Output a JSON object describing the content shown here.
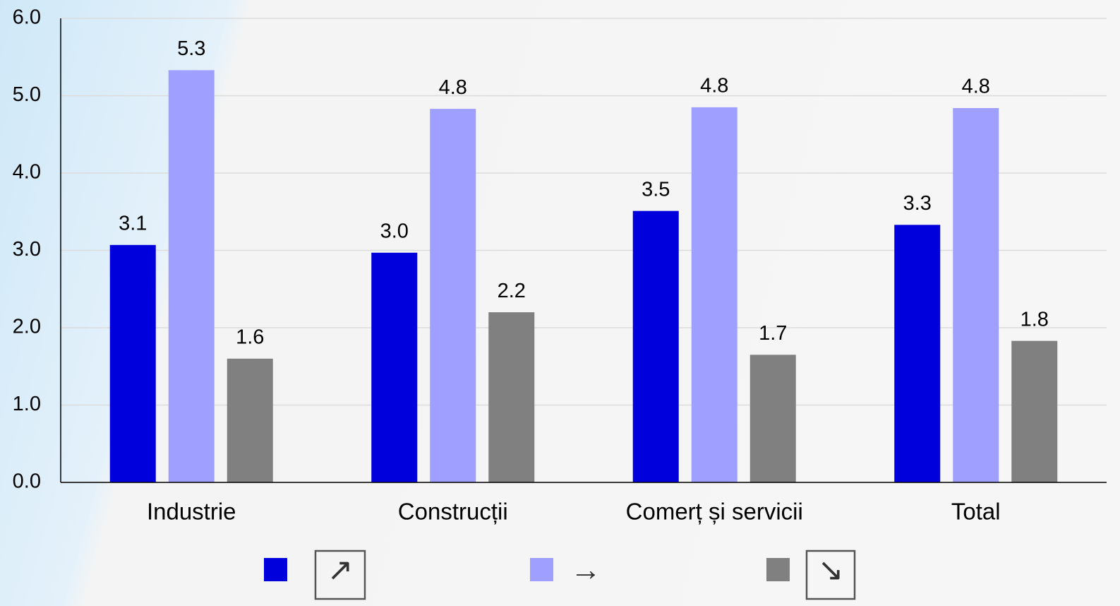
{
  "chart_data": {
    "type": "bar",
    "categories": [
      "Industrie",
      "Construcții",
      "Comerț și servicii",
      "Total"
    ],
    "series": [
      {
        "name": "↗",
        "color": "#0000dd",
        "values": [
          3.07,
          2.97,
          3.51,
          3.33
        ],
        "value_labels": [
          "3.1",
          "3.0",
          "3.5",
          "3.3"
        ]
      },
      {
        "name": "→",
        "color": "#9f9fff",
        "values": [
          5.33,
          4.83,
          4.85,
          4.84
        ],
        "value_labels": [
          "5.3",
          "4.8",
          "4.8",
          "4.8"
        ]
      },
      {
        "name": "↘",
        "color": "#808080",
        "values": [
          1.6,
          2.2,
          1.65,
          1.83
        ],
        "value_labels": [
          "1.6",
          "2.2",
          "1.7",
          "1.8"
        ]
      }
    ],
    "ylim": [
      0,
      6
    ],
    "yticks": [
      {
        "value": 0,
        "label": "0.0"
      },
      {
        "value": 1,
        "label": "1.0"
      },
      {
        "value": 2,
        "label": "2.0"
      },
      {
        "value": 3,
        "label": "3.0"
      },
      {
        "value": 4,
        "label": "4.0"
      },
      {
        "value": 5,
        "label": "5.0"
      },
      {
        "value": 6,
        "label": "6.0"
      }
    ],
    "grid": true
  }
}
